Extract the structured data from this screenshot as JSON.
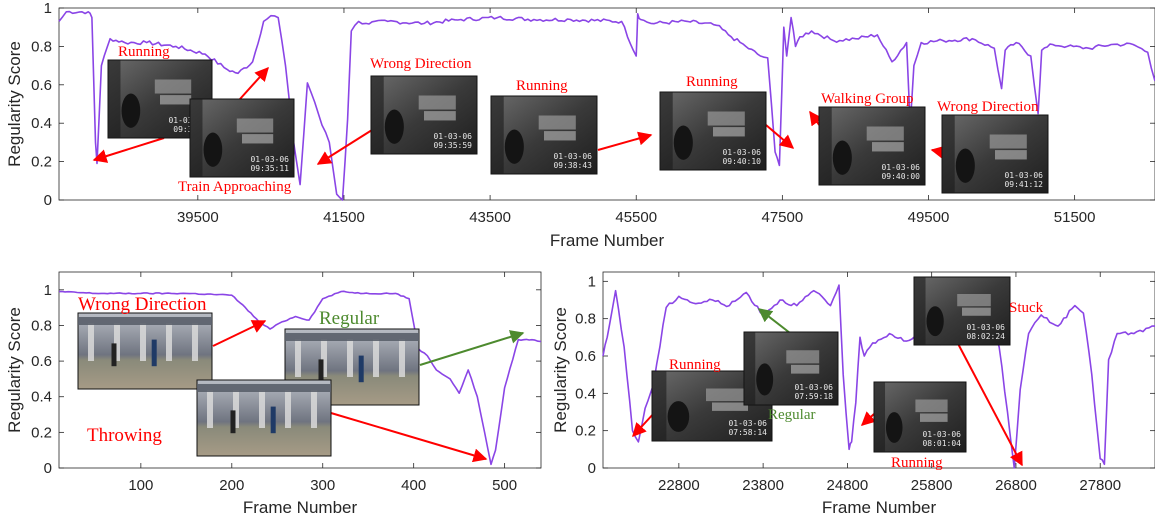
{
  "colors": {
    "line": "#8a45e6",
    "anno_red": "#ff0000",
    "anno_green": "#4d8a2e",
    "axis": "#262626"
  },
  "chart_data": [
    {
      "id": "top",
      "type": "line",
      "xlabel": "Frame Number",
      "ylabel": "Regularity Score",
      "xlim": [
        37600,
        52600
      ],
      "ylim": [
        0,
        1
      ],
      "xticks": [
        39500,
        41500,
        43500,
        45500,
        47500,
        49500,
        51500
      ],
      "yticks": [
        0,
        0.2,
        0.4,
        0.6,
        0.8,
        1
      ],
      "ytick_labels": [
        "0",
        "0.2",
        "0.4",
        "0.6",
        "0.8",
        "1"
      ],
      "series": [
        {
          "x": [
            37600,
            37700,
            38000,
            38050,
            38100,
            38120,
            38180,
            38300,
            38500,
            38800,
            39200,
            39600,
            39900,
            40050,
            40250,
            40400,
            40500,
            40600,
            40700,
            40800,
            40900,
            41000,
            41100,
            41200,
            41300,
            41400,
            41480,
            41550,
            41600,
            41700,
            41800,
            42100,
            42600,
            43100,
            43600,
            44100,
            44600,
            45300,
            45500,
            45520,
            45560,
            45700,
            46200,
            46600,
            46800,
            47000,
            47200,
            47300,
            47400,
            47460,
            47520,
            47560,
            47620,
            47680,
            47740,
            47900,
            48200,
            48500,
            48800,
            49000,
            49200,
            49250,
            49300,
            49400,
            49700,
            50100,
            50400,
            50500,
            50550,
            50700,
            50900,
            51000,
            51050,
            51200,
            51400,
            51700,
            52000,
            52300,
            52500,
            52600
          ],
          "y": [
            0.93,
            0.98,
            0.98,
            0.95,
            0.3,
            0.19,
            0.7,
            0.84,
            0.82,
            0.82,
            0.8,
            0.76,
            0.68,
            0.66,
            0.72,
            0.93,
            0.96,
            0.95,
            0.7,
            0.33,
            0.08,
            0.61,
            0.51,
            0.39,
            0.3,
            0.03,
            0.0,
            0.42,
            0.88,
            0.93,
            0.92,
            0.93,
            0.92,
            0.94,
            0.95,
            0.94,
            0.94,
            0.93,
            0.75,
            0.97,
            0.94,
            0.92,
            0.93,
            0.91,
            0.85,
            0.8,
            0.75,
            0.74,
            0.25,
            0.18,
            0.9,
            0.75,
            0.95,
            0.8,
            0.85,
            0.88,
            0.83,
            0.84,
            0.86,
            0.72,
            0.82,
            0.39,
            0.7,
            0.82,
            0.83,
            0.84,
            0.79,
            0.58,
            0.78,
            0.82,
            0.75,
            0.45,
            0.78,
            0.81,
            0.8,
            0.79,
            0.81,
            0.81,
            0.77,
            0.62
          ]
        }
      ]
    },
    {
      "id": "bl",
      "type": "line",
      "xlabel": "Frame Number",
      "ylabel": "Regularity Score",
      "xlim": [
        10,
        540
      ],
      "ylim": [
        0,
        1.1
      ],
      "xticks": [
        100,
        200,
        300,
        400,
        500
      ],
      "yticks": [
        0,
        0.2,
        0.4,
        0.6,
        0.8,
        1
      ],
      "ytick_labels": [
        "0",
        "0.2",
        "0.4",
        "0.6",
        "0.8",
        "1"
      ],
      "series": [
        {
          "x": [
            10,
            50,
            100,
            150,
            200,
            215,
            230,
            242,
            255,
            270,
            285,
            300,
            320,
            345,
            380,
            395,
            405,
            415,
            425,
            440,
            450,
            460,
            470,
            478,
            485,
            490,
            500,
            515,
            530,
            540
          ],
          "y": [
            0.99,
            0.98,
            0.98,
            0.98,
            0.97,
            0.9,
            0.82,
            0.78,
            0.82,
            0.85,
            0.83,
            0.95,
            0.99,
            0.98,
            0.98,
            0.95,
            0.67,
            0.63,
            0.55,
            0.5,
            0.42,
            0.55,
            0.4,
            0.2,
            0.02,
            0.1,
            0.45,
            0.72,
            0.72,
            0.71
          ]
        }
      ]
    },
    {
      "id": "br",
      "type": "line",
      "xlabel": "Frame Number",
      "ylabel": "Regularity Score",
      "xlim": [
        21900,
        28450
      ],
      "ylim": [
        0,
        1.05
      ],
      "xticks": [
        22800,
        23800,
        24800,
        25800,
        26800,
        27800
      ],
      "yticks": [
        0,
        0.2,
        0.4,
        0.6,
        0.8,
        1
      ],
      "ytick_labels": [
        "0",
        "0.2",
        "0.4",
        "0.6",
        "0.8",
        "1"
      ],
      "series": [
        {
          "x": [
            21900,
            21950,
            22050,
            22150,
            22250,
            22320,
            22400,
            22500,
            22650,
            22800,
            23000,
            23200,
            23400,
            23600,
            23800,
            24000,
            24200,
            24400,
            24600,
            24700,
            24750,
            24820,
            24850,
            24900,
            24950,
            25000,
            25100,
            25300,
            25500,
            25700,
            25900,
            26100,
            26300,
            26500,
            26600,
            26700,
            26780,
            26850,
            26950,
            27100,
            27300,
            27500,
            27600,
            27700,
            27800,
            27850,
            27900,
            28000,
            28200,
            28450
          ],
          "y": [
            0.6,
            0.7,
            0.95,
            0.65,
            0.2,
            0.14,
            0.32,
            0.45,
            0.86,
            0.92,
            0.88,
            0.9,
            0.87,
            0.94,
            0.82,
            0.9,
            0.87,
            0.95,
            0.87,
            0.98,
            0.5,
            0.1,
            0.14,
            0.35,
            0.7,
            0.6,
            0.67,
            0.72,
            0.68,
            0.72,
            0.66,
            0.7,
            0.74,
            0.8,
            0.65,
            0.3,
            0.0,
            0.42,
            0.72,
            0.82,
            0.76,
            0.87,
            0.83,
            0.5,
            0.05,
            0.02,
            0.58,
            0.72,
            0.72,
            0.76
          ]
        }
      ]
    }
  ],
  "annotations": {
    "top": [
      {
        "text": "Running",
        "color": "red"
      },
      {
        "text": "Train Approaching",
        "color": "red"
      },
      {
        "text": "Wrong Direction",
        "color": "red"
      },
      {
        "text": "Running",
        "color": "red"
      },
      {
        "text": "Running",
        "color": "red"
      },
      {
        "text": "Walking Group",
        "color": "red"
      },
      {
        "text": "Wrong Direction",
        "color": "red"
      }
    ],
    "bl": [
      {
        "text": "Wrong Direction",
        "color": "red"
      },
      {
        "text": "Regular",
        "color": "green"
      },
      {
        "text": "Throwing",
        "color": "red"
      }
    ],
    "br": [
      {
        "text": "Running",
        "color": "red"
      },
      {
        "text": "Regular",
        "color": "green"
      },
      {
        "text": "Stuck",
        "color": "red"
      },
      {
        "text": "Running",
        "color": "red"
      }
    ]
  },
  "thumbnails": {
    "top": [
      {
        "stamp": [
          "01-03-06",
          "09:35:0"
        ]
      },
      {
        "stamp": [
          "01-03-06",
          "09:35:11"
        ]
      },
      {
        "stamp": [
          "01-03-06",
          "09:35:59"
        ]
      },
      {
        "stamp": [
          "01-03-06",
          "09:38:43"
        ]
      },
      {
        "stamp": [
          "01-03-06",
          "09:40:10"
        ]
      },
      {
        "stamp": [
          "01-03-06",
          "09:40:00"
        ]
      },
      {
        "stamp": [
          "01-03-06",
          "09:41:12"
        ]
      }
    ],
    "br": [
      {
        "stamp": [
          "01-03-06",
          "07:58:14"
        ]
      },
      {
        "stamp": [
          "01-03-06",
          "07:59:18"
        ]
      },
      {
        "stamp": [
          "01-03-06",
          "08:02:24"
        ]
      },
      {
        "stamp": [
          "01-03-06",
          "08:01:04"
        ]
      }
    ]
  }
}
